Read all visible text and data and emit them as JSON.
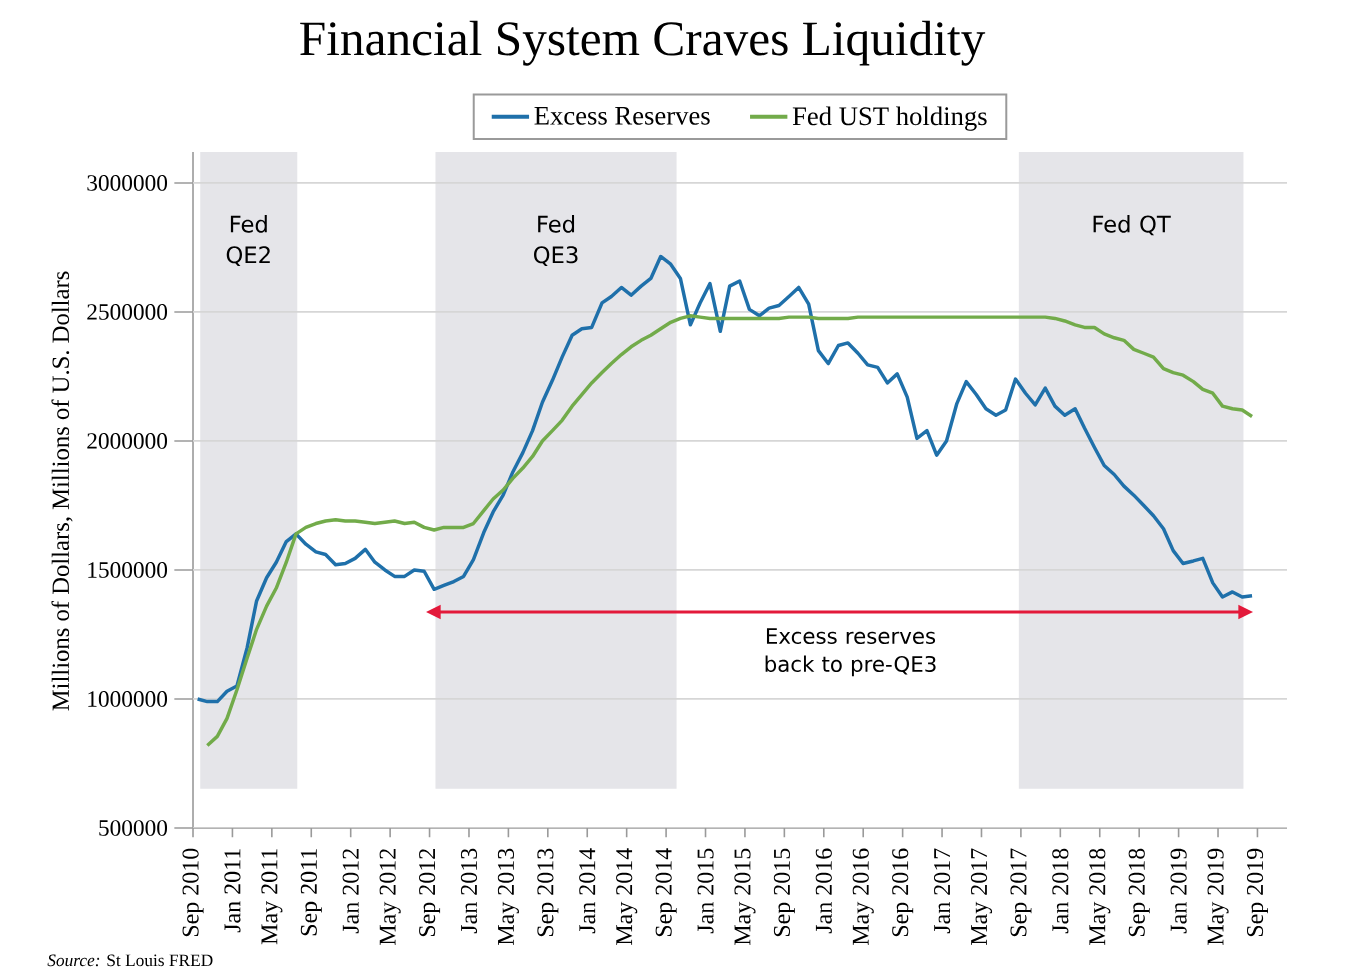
{
  "chart_data": {
    "type": "line",
    "title": "Financial System Craves Liquidity",
    "ylabel": "Millions of Dollars, Millions of U.S. Dollars",
    "x": [
      "2010-09-15",
      "2010-10-15",
      "2010-11-15",
      "2010-12-15",
      "2011-01-15",
      "2011-02-15",
      "2011-03-15",
      "2011-04-15",
      "2011-05-15",
      "2011-06-15",
      "2011-07-15",
      "2011-08-15",
      "2011-09-15",
      "2011-10-15",
      "2011-11-15",
      "2011-12-15",
      "2012-01-15",
      "2012-02-15",
      "2012-03-15",
      "2012-04-15",
      "2012-05-15",
      "2012-06-15",
      "2012-07-15",
      "2012-08-15",
      "2012-09-15",
      "2012-10-15",
      "2012-11-15",
      "2012-12-15",
      "2013-01-15",
      "2013-02-15",
      "2013-03-15",
      "2013-04-15",
      "2013-05-15",
      "2013-06-15",
      "2013-07-15",
      "2013-08-15",
      "2013-09-15",
      "2013-10-15",
      "2013-11-15",
      "2013-12-15",
      "2014-01-15",
      "2014-02-15",
      "2014-03-15",
      "2014-04-15",
      "2014-05-15",
      "2014-06-15",
      "2014-07-15",
      "2014-08-15",
      "2014-09-15",
      "2014-10-15",
      "2014-11-15",
      "2014-12-15",
      "2015-01-15",
      "2015-02-15",
      "2015-03-15",
      "2015-04-15",
      "2015-05-15",
      "2015-06-15",
      "2015-07-15",
      "2015-08-15",
      "2015-09-15",
      "2015-10-15",
      "2015-11-15",
      "2015-12-15",
      "2016-01-15",
      "2016-02-15",
      "2016-03-15",
      "2016-04-15",
      "2016-05-15",
      "2016-06-15",
      "2016-07-15",
      "2016-08-15",
      "2016-09-15",
      "2016-10-15",
      "2016-11-15",
      "2016-12-15",
      "2017-01-15",
      "2017-02-15",
      "2017-03-15",
      "2017-04-15",
      "2017-05-15",
      "2017-06-15",
      "2017-07-15",
      "2017-08-15",
      "2017-09-15",
      "2017-10-15",
      "2017-11-15",
      "2017-12-15",
      "2018-01-15",
      "2018-02-15",
      "2018-03-15",
      "2018-04-15",
      "2018-05-15",
      "2018-06-15",
      "2018-07-15",
      "2018-08-15",
      "2018-09-15",
      "2018-10-15",
      "2018-11-15",
      "2018-12-15",
      "2019-01-15",
      "2019-02-15",
      "2019-03-15",
      "2019-04-15",
      "2019-05-15",
      "2019-06-15",
      "2019-07-15",
      "2019-08-15"
    ],
    "series": [
      {
        "name": "Excess Reserves",
        "color": "#1f70aa",
        "values": [
          1000000,
          990000,
          990000,
          1030000,
          1050000,
          1200000,
          1380000,
          1470000,
          1530000,
          1610000,
          1640000,
          1600000,
          1570000,
          1560000,
          1520000,
          1525000,
          1545000,
          1580000,
          1530000,
          1500000,
          1475000,
          1475000,
          1500000,
          1495000,
          1425000,
          1440000,
          1455000,
          1475000,
          1540000,
          1645000,
          1725000,
          1790000,
          1880000,
          1955000,
          2040000,
          2150000,
          2235000,
          2325000,
          2410000,
          2435000,
          2440000,
          2535000,
          2560000,
          2595000,
          2565000,
          2600000,
          2630000,
          2715000,
          2685000,
          2630000,
          2450000,
          2535000,
          2610000,
          2425000,
          2600000,
          2620000,
          2510000,
          2485000,
          2515000,
          2525000,
          2560000,
          2595000,
          2530000,
          2350000,
          2300000,
          2370000,
          2380000,
          2340000,
          2295000,
          2285000,
          2225000,
          2260000,
          2170000,
          2010000,
          2040000,
          1945000,
          2000000,
          2145000,
          2230000,
          2180000,
          2125000,
          2100000,
          2120000,
          2240000,
          2185000,
          2140000,
          2205000,
          2135000,
          2100000,
          2125000,
          2050000,
          1975000,
          1905000,
          1870000,
          1825000,
          1790000,
          1750000,
          1710000,
          1660000,
          1575000,
          1525000,
          1535000,
          1545000,
          1450000,
          1395000,
          1415000,
          1395000,
          1400000
        ]
      },
      {
        "name": "Fed UST holdings",
        "color": "#72ab4a",
        "values": [
          null,
          820000,
          855000,
          925000,
          1035000,
          1160000,
          1270000,
          1360000,
          1430000,
          1530000,
          1640000,
          1665000,
          1680000,
          1690000,
          1695000,
          1690000,
          1690000,
          1685000,
          1680000,
          1685000,
          1690000,
          1680000,
          1685000,
          1665000,
          1655000,
          1665000,
          1665000,
          1665000,
          1680000,
          1730000,
          1775000,
          1810000,
          1855000,
          1895000,
          1940000,
          2000000,
          2040000,
          2080000,
          2135000,
          2180000,
          2225000,
          2265000,
          2300000,
          2335000,
          2365000,
          2390000,
          2410000,
          2435000,
          2460000,
          2475000,
          2485000,
          2480000,
          2475000,
          2475000,
          2475000,
          2475000,
          2475000,
          2475000,
          2475000,
          2475000,
          2480000,
          2480000,
          2480000,
          2475000,
          2475000,
          2475000,
          2475000,
          2480000,
          2480000,
          2480000,
          2480000,
          2480000,
          2480000,
          2480000,
          2480000,
          2480000,
          2480000,
          2480000,
          2480000,
          2480000,
          2480000,
          2480000,
          2480000,
          2480000,
          2480000,
          2480000,
          2480000,
          2475000,
          2465000,
          2450000,
          2440000,
          2440000,
          2415000,
          2400000,
          2390000,
          2355000,
          2340000,
          2325000,
          2280000,
          2265000,
          2255000,
          2230000,
          2200000,
          2185000,
          2135000,
          2125000,
          2120000,
          2095000
        ]
      }
    ],
    "xlim": [
      "2010-09",
      "2019-12"
    ],
    "xticks": [
      {
        "value": "2010-09",
        "label": "Sep 2010"
      },
      {
        "value": "2011-01",
        "label": "Jan 2011"
      },
      {
        "value": "2011-05",
        "label": "May 2011"
      },
      {
        "value": "2011-09",
        "label": "Sep 2011"
      },
      {
        "value": "2012-01",
        "label": "Jan 2012"
      },
      {
        "value": "2012-05",
        "label": "May 2012"
      },
      {
        "value": "2012-09",
        "label": "Sep 2012"
      },
      {
        "value": "2013-01",
        "label": "Jan 2013"
      },
      {
        "value": "2013-05",
        "label": "May 2013"
      },
      {
        "value": "2013-09",
        "label": "Sep 2013"
      },
      {
        "value": "2014-01",
        "label": "Jan 2014"
      },
      {
        "value": "2014-05",
        "label": "May 2014"
      },
      {
        "value": "2014-09",
        "label": "Sep 2014"
      },
      {
        "value": "2015-01",
        "label": "Jan 2015"
      },
      {
        "value": "2015-05",
        "label": "May 2015"
      },
      {
        "value": "2015-09",
        "label": "Sep 2015"
      },
      {
        "value": "2016-01",
        "label": "Jan 2016"
      },
      {
        "value": "2016-05",
        "label": "May 2016"
      },
      {
        "value": "2016-09",
        "label": "Sep 2016"
      },
      {
        "value": "2017-01",
        "label": "Jan 2017"
      },
      {
        "value": "2017-05",
        "label": "May 2017"
      },
      {
        "value": "2017-09",
        "label": "Sep 2017"
      },
      {
        "value": "2018-01",
        "label": "Jan 2018"
      },
      {
        "value": "2018-05",
        "label": "May 2018"
      },
      {
        "value": "2018-09",
        "label": "Sep 2018"
      },
      {
        "value": "2019-01",
        "label": "Jan 2019"
      },
      {
        "value": "2019-05",
        "label": "May 2019"
      },
      {
        "value": "2019-09",
        "label": "Sep 2019"
      }
    ],
    "ylim": [
      500000,
      3120000
    ],
    "yticks": [
      500000,
      1000000,
      1500000,
      2000000,
      2500000,
      3000000
    ],
    "bands": [
      {
        "axis": "x",
        "from": "2010-09-23",
        "to": "2011-07-19",
        "label": "Fed QE2",
        "color": "#e5e5e9"
      },
      {
        "axis": "x",
        "from": "2012-09-19",
        "to": "2014-10-03",
        "label": "Fed QE3",
        "color": "#e5e5e9"
      },
      {
        "axis": "x",
        "from": "2017-08-25",
        "to": "2019-07-19",
        "label": "Fed QT",
        "color": "#e5e5e9"
      }
    ],
    "annotations": [
      "Excess reserves back to pre-QE3",
      "*Source:* St Louis FRED"
    ],
    "grid": "y",
    "legend": "top",
    "marker": "none",
    "line_style": "solid"
  }
}
